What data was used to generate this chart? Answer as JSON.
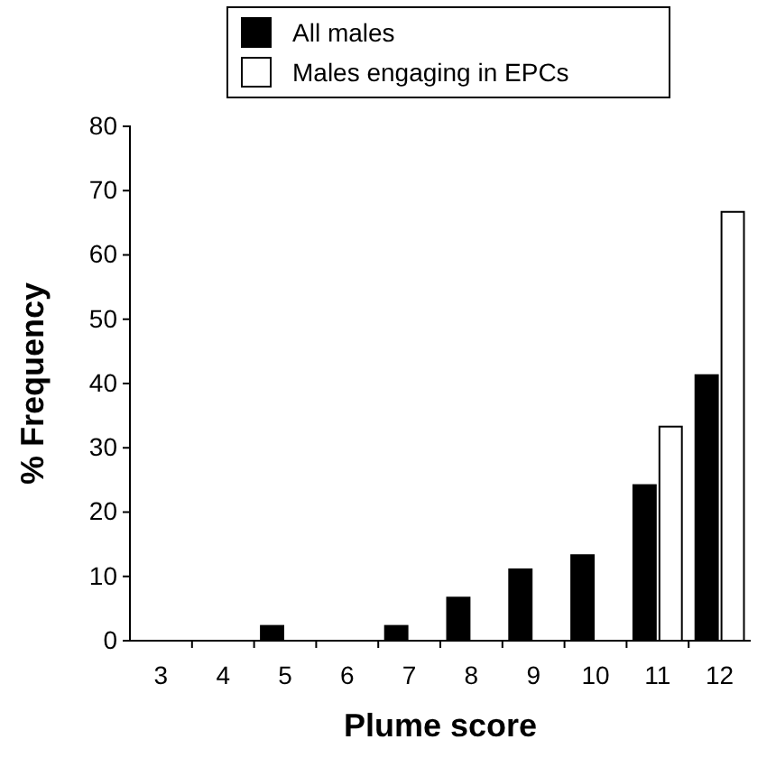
{
  "chart_data": {
    "type": "bar",
    "xlabel": "Plume score",
    "ylabel": "% Frequency",
    "categories": [
      "3",
      "4",
      "5",
      "6",
      "7",
      "8",
      "9",
      "10",
      "11",
      "12"
    ],
    "series": [
      {
        "name": "All males",
        "color": "#000000",
        "values": [
          0,
          0,
          2.3,
          0,
          2.3,
          6.7,
          11.1,
          13.3,
          24.2,
          41.3
        ]
      },
      {
        "name": "Males engaging in EPCs",
        "color": "#ffffff",
        "values": [
          0,
          0,
          0,
          0,
          0,
          0,
          0,
          0,
          33.3,
          66.7
        ]
      }
    ],
    "ylim": [
      0,
      80
    ],
    "yticks": [
      0,
      10,
      20,
      30,
      40,
      50,
      60,
      70,
      80
    ],
    "grid": false,
    "legend": "top"
  }
}
